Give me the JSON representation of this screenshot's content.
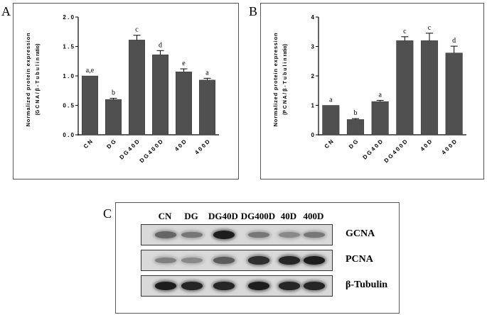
{
  "panels": {
    "a_letter": "A",
    "b_letter": "B",
    "c_letter": "C"
  },
  "chart_data": [
    {
      "type": "bar",
      "panel": "A",
      "categories": [
        "C N",
        "D G",
        "D G 4 0 D",
        "D G 4 0 0 D",
        "4 0 D",
        "4 0 0 D"
      ],
      "values": [
        1.0,
        0.6,
        1.61,
        1.36,
        1.07,
        0.93
      ],
      "errors": [
        0.0,
        0.02,
        0.08,
        0.07,
        0.05,
        0.03
      ],
      "annotations": [
        "a,e",
        "b",
        "c",
        "d",
        "e",
        "a"
      ],
      "ylabel_line1": "Normalized protein expression",
      "ylabel_line2": "(G C N A / β - T u b u l i n  ratio)",
      "ylim": [
        0,
        2.0
      ],
      "yticks": [
        "0 . 0",
        "0 . 5",
        "1 . 0",
        "1 . 5",
        "2 . 0"
      ],
      "ytick_values": [
        0,
        0.5,
        1.0,
        1.5,
        2.0
      ]
    },
    {
      "type": "bar",
      "panel": "B",
      "categories": [
        "C N",
        "D G",
        "D G 4 0 D",
        "D G 4 0 0 D",
        "4 0 D",
        "4 0 0 D"
      ],
      "values": [
        1.0,
        0.52,
        1.13,
        3.2,
        3.2,
        2.78
      ],
      "errors": [
        0.0,
        0.03,
        0.04,
        0.13,
        0.25,
        0.23
      ],
      "annotations": [
        "a",
        "b",
        "a",
        "c",
        "c",
        "d"
      ],
      "ylabel_line1": "Normalized protein expression",
      "ylabel_line2": "(P C N A / β - T u b u l i n  ratio)",
      "ylim": [
        0,
        4
      ],
      "yticks": [
        "0",
        "1",
        "2",
        "3",
        "4"
      ],
      "ytick_values": [
        0,
        1,
        2,
        3,
        4
      ]
    }
  ],
  "blot": {
    "lanes": [
      "CN",
      "DG",
      "DG40D",
      "DG400D",
      "40D",
      "400D"
    ],
    "rows": [
      {
        "label": "GCNA",
        "intensity": [
          0.55,
          0.45,
          0.95,
          0.45,
          0.35,
          0.45
        ]
      },
      {
        "label": "PCNA",
        "intensity": [
          0.4,
          0.35,
          0.6,
          0.85,
          0.9,
          0.95
        ]
      },
      {
        "label": "β-Tubulin",
        "intensity": [
          0.95,
          0.9,
          0.9,
          0.95,
          0.9,
          0.9
        ]
      }
    ]
  }
}
